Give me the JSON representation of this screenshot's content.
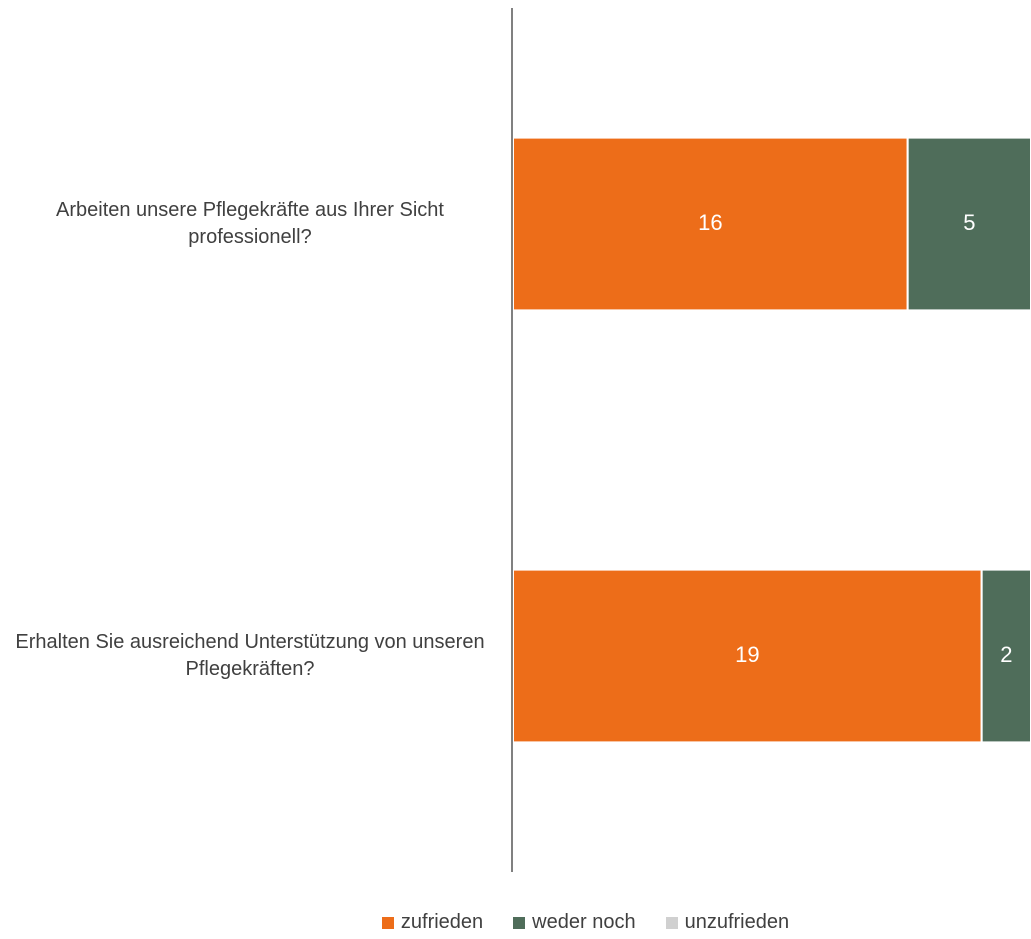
{
  "chart_data": {
    "type": "stacked-bar-horizontal",
    "categories": [
      "Arbeiten unsere Pflegekräfte aus Ihrer Sicht professionell?",
      "Erhalten Sie ausreichend Unterstützung von unseren Pflegekräften?"
    ],
    "series": [
      {
        "name": "zufrieden",
        "color": "#ED6D19",
        "values": [
          16,
          19
        ]
      },
      {
        "name": "weder noch",
        "color": "#4F6D5A",
        "values": [
          5,
          2
        ]
      },
      {
        "name": "unzufrieden",
        "color": "#D0D0D0",
        "values": [
          0,
          0
        ]
      }
    ],
    "xlim": [
      0,
      21
    ],
    "legend": "bottom"
  }
}
